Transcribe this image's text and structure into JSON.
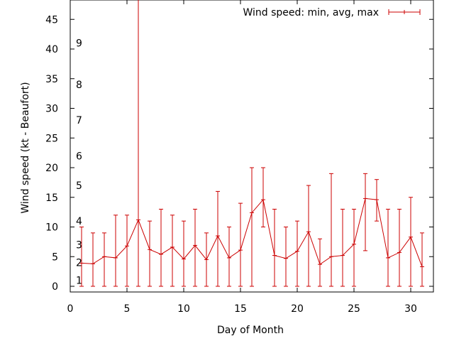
{
  "chart_data": {
    "type": "line",
    "title": "",
    "xlabel": "Day of Month",
    "ylabel": "Wind speed (kt - Beaufort)",
    "xlim": [
      0,
      32
    ],
    "ylim": [
      0,
      48
    ],
    "x_ticks": [
      0,
      5,
      10,
      15,
      20,
      25,
      30
    ],
    "y_ticks": [
      0,
      5,
      10,
      15,
      20,
      25,
      30,
      35,
      40,
      45
    ],
    "grid": false,
    "legend": "top-right",
    "series": [
      {
        "name": "Wind speed: min, avg, max",
        "color": "#cc0000",
        "x": [
          1,
          2,
          3,
          4,
          5,
          6,
          7,
          8,
          9,
          10,
          11,
          12,
          13,
          14,
          15,
          16,
          17,
          18,
          19,
          20,
          21,
          22,
          23,
          24,
          25,
          26,
          27,
          28,
          29,
          30,
          31
        ],
        "avg": [
          3.9,
          3.8,
          5.0,
          4.8,
          6.8,
          11.2,
          6.2,
          5.4,
          6.6,
          4.6,
          6.9,
          4.5,
          8.5,
          4.8,
          6.1,
          12.4,
          14.6,
          5.2,
          4.7,
          5.9,
          9.2,
          3.7,
          5.0,
          5.2,
          7.1,
          14.8,
          14.6,
          4.8,
          5.7,
          8.3,
          3.3
        ],
        "min": [
          0,
          0,
          0,
          0,
          0,
          0,
          0,
          0,
          0,
          0,
          0,
          0,
          0,
          0,
          0,
          0,
          10,
          0,
          0,
          0,
          0,
          0,
          0,
          0,
          0,
          6,
          11,
          0,
          0,
          0,
          0
        ],
        "max": [
          10,
          9,
          9,
          12,
          12,
          48,
          11,
          13,
          12,
          11,
          13,
          9,
          16,
          10,
          14,
          20,
          20,
          13,
          10,
          11,
          17,
          8,
          19,
          13,
          13,
          19,
          18,
          13,
          13,
          15,
          9
        ]
      }
    ],
    "beaufort_labels": [
      {
        "label": "1",
        "kt": 1
      },
      {
        "label": "2",
        "kt": 4
      },
      {
        "label": "3",
        "kt": 7
      },
      {
        "label": "4",
        "kt": 11
      },
      {
        "label": "5",
        "kt": 17
      },
      {
        "label": "6",
        "kt": 22
      },
      {
        "label": "7",
        "kt": 28
      },
      {
        "label": "8",
        "kt": 34
      },
      {
        "label": "9",
        "kt": 41
      }
    ]
  }
}
